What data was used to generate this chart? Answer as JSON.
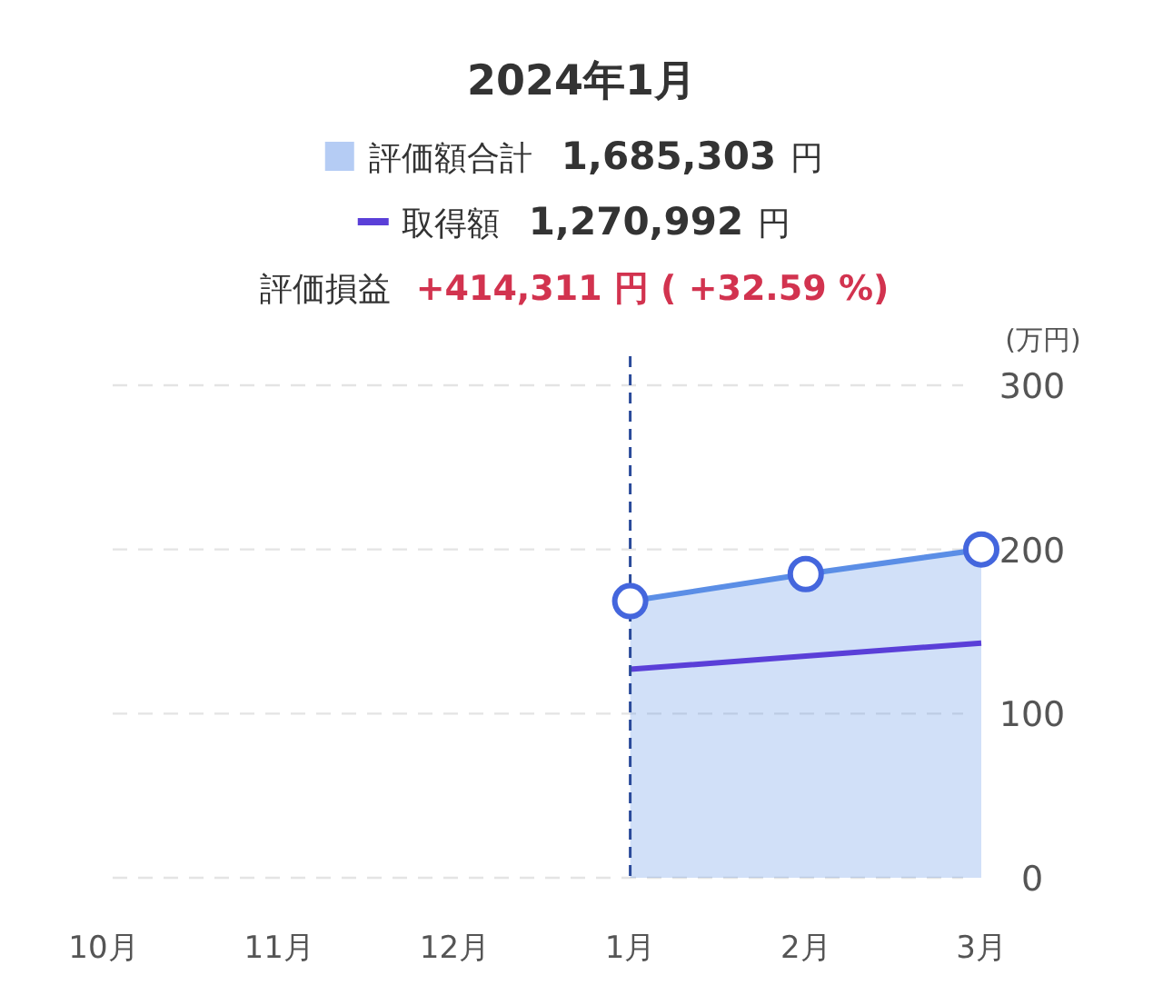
{
  "chart_data": {
    "type": "area",
    "title": "2024年1月",
    "ylabel": "(万円)",
    "categories": [
      "10月",
      "11月",
      "12月",
      "1月",
      "2月",
      "3月"
    ],
    "series": [
      {
        "name": "評価額合計",
        "type": "area",
        "color": "#5b8ee6",
        "marker": "circle",
        "values": [
          null,
          null,
          null,
          168.5,
          185,
          200
        ]
      },
      {
        "name": "取得額",
        "type": "line",
        "color": "#5a3fd8",
        "marker": "none",
        "values": [
          null,
          null,
          null,
          127,
          135,
          143
        ]
      }
    ],
    "annotations": [
      "1,685,303 円",
      "1,270,992 円",
      "評価損益",
      "+414,311 円 ( +32.59 %)"
    ],
    "ylim": [
      0,
      300
    ],
    "yticks": [
      0,
      100,
      200,
      300
    ],
    "grid": "y",
    "legend": "top",
    "ref_lines": [
      {
        "axis": "x",
        "value": "1月",
        "color": "#2a4a9a",
        "line_style": "dashed"
      }
    ]
  }
}
